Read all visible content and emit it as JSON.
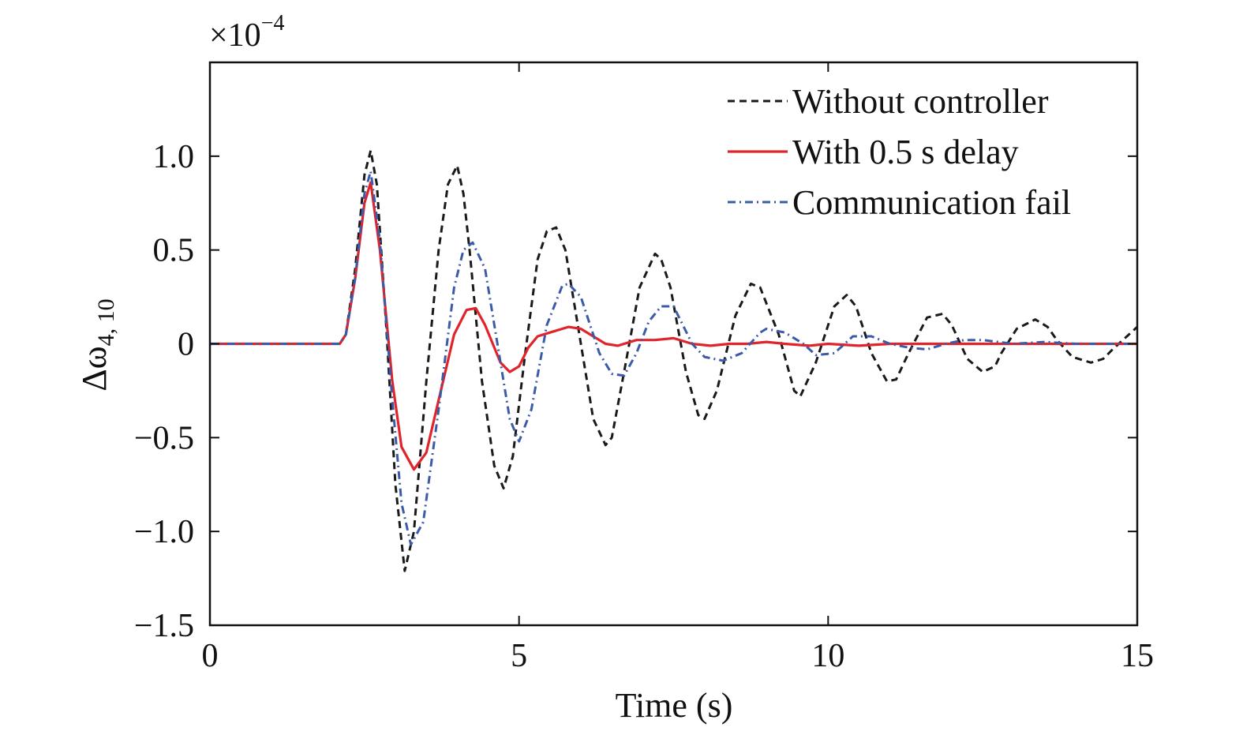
{
  "chart_data": {
    "type": "line",
    "xlabel": "Time (s)",
    "ylabel": {
      "main": "Δω",
      "subscript": "4, 10"
    },
    "y_exponent": {
      "prefix": "×10",
      "power": "−4"
    },
    "xlim": [
      0,
      15
    ],
    "ylim": [
      -1.5,
      1.5
    ],
    "x_ticks": [
      0,
      5,
      10,
      15
    ],
    "x_tick_labels": [
      "0",
      "5",
      "10",
      "15"
    ],
    "y_ticks": [
      1.0,
      0.5,
      0,
      -0.5,
      -1.0,
      -1.5
    ],
    "y_tick_labels": [
      "1.0",
      "0.5",
      "0",
      "−0.5",
      "−1.0",
      "−1.5"
    ],
    "grid": false,
    "legend_position": "top-right",
    "series": [
      {
        "name": "Without controller",
        "color": "#1a1a1a",
        "dash": "dashed",
        "x": [
          0,
          2.1,
          2.2,
          2.35,
          2.5,
          2.6,
          2.7,
          2.85,
          3.0,
          3.15,
          3.3,
          3.5,
          3.7,
          3.85,
          4.0,
          4.1,
          4.2,
          4.4,
          4.6,
          4.75,
          4.9,
          5.1,
          5.3,
          5.45,
          5.6,
          5.75,
          5.95,
          6.2,
          6.4,
          6.5,
          6.7,
          6.95,
          7.2,
          7.3,
          7.45,
          7.7,
          7.9,
          8.0,
          8.2,
          8.5,
          8.75,
          8.9,
          9.2,
          9.45,
          9.55,
          9.8,
          10.1,
          10.3,
          10.45,
          10.7,
          10.95,
          11.1,
          11.3,
          11.6,
          11.85,
          12.0,
          12.25,
          12.5,
          12.7,
          12.8,
          13.05,
          13.35,
          13.55,
          13.7,
          13.95,
          14.25,
          14.45,
          14.6,
          14.8,
          15.0
        ],
        "y": [
          0,
          0,
          0.05,
          0.4,
          0.9,
          1.03,
          0.85,
          0.1,
          -0.75,
          -1.21,
          -1.0,
          -0.2,
          0.5,
          0.85,
          0.95,
          0.8,
          0.5,
          -0.2,
          -0.65,
          -0.77,
          -0.6,
          -0.05,
          0.45,
          0.6,
          0.62,
          0.5,
          0.1,
          -0.4,
          -0.54,
          -0.5,
          -0.15,
          0.3,
          0.48,
          0.45,
          0.3,
          -0.15,
          -0.38,
          -0.4,
          -0.25,
          0.15,
          0.32,
          0.3,
          0.05,
          -0.25,
          -0.28,
          -0.1,
          0.2,
          0.26,
          0.2,
          -0.05,
          -0.2,
          -0.19,
          -0.05,
          0.14,
          0.16,
          0.1,
          -0.08,
          -0.15,
          -0.12,
          -0.05,
          0.08,
          0.13,
          0.09,
          0.02,
          -0.07,
          -0.1,
          -0.08,
          -0.03,
          0.03,
          0.09
        ]
      },
      {
        "name": "With 0.5 s delay",
        "color": "#e0242b",
        "dash": "solid",
        "x": [
          0,
          2.1,
          2.2,
          2.35,
          2.5,
          2.6,
          2.75,
          2.95,
          3.1,
          3.3,
          3.5,
          3.7,
          3.95,
          4.15,
          4.3,
          4.45,
          4.7,
          4.85,
          5.0,
          5.15,
          5.3,
          5.5,
          5.8,
          6.0,
          6.2,
          6.4,
          6.6,
          6.9,
          7.2,
          7.5,
          7.8,
          8.1,
          8.4,
          8.7,
          9.0,
          9.3,
          9.7,
          10.0,
          10.5,
          11.0,
          11.5,
          12.0,
          12.5,
          13.0,
          14.0,
          15.0
        ],
        "y": [
          0,
          0,
          0.05,
          0.35,
          0.75,
          0.86,
          0.5,
          -0.2,
          -0.55,
          -0.67,
          -0.58,
          -0.3,
          0.05,
          0.18,
          0.19,
          0.1,
          -0.1,
          -0.15,
          -0.12,
          -0.02,
          0.04,
          0.06,
          0.09,
          0.08,
          0.04,
          0.0,
          -0.01,
          0.02,
          0.02,
          0.03,
          0.0,
          -0.01,
          0.0,
          0.0,
          0.01,
          0.0,
          -0.01,
          0.0,
          -0.01,
          0.0,
          0.0,
          0.0,
          0.0,
          0.0,
          0.0,
          0.0
        ]
      },
      {
        "name": "Communication fail",
        "color": "#3b5ba9",
        "dash": "dashdot",
        "x": [
          0,
          2.1,
          2.2,
          2.35,
          2.5,
          2.6,
          2.75,
          2.95,
          3.1,
          3.25,
          3.45,
          3.7,
          3.95,
          4.1,
          4.25,
          4.45,
          4.65,
          4.85,
          5.0,
          5.2,
          5.45,
          5.7,
          5.8,
          6.0,
          6.3,
          6.5,
          6.7,
          6.9,
          7.1,
          7.3,
          7.5,
          7.8,
          8.0,
          8.3,
          8.6,
          8.9,
          9.0,
          9.3,
          9.6,
          9.8,
          10.1,
          10.4,
          10.7,
          11.0,
          11.3,
          11.6,
          11.9,
          12.2,
          12.5,
          13.0,
          13.5,
          14.0,
          15.0
        ],
        "y": [
          0,
          0,
          0.05,
          0.35,
          0.8,
          0.92,
          0.55,
          -0.3,
          -0.85,
          -1.07,
          -0.95,
          -0.35,
          0.3,
          0.5,
          0.54,
          0.4,
          0.0,
          -0.4,
          -0.52,
          -0.35,
          0.1,
          0.31,
          0.32,
          0.25,
          -0.05,
          -0.16,
          -0.17,
          -0.05,
          0.12,
          0.2,
          0.2,
          0.0,
          -0.07,
          -0.09,
          -0.05,
          0.06,
          0.08,
          0.06,
          0.0,
          -0.06,
          -0.05,
          0.04,
          0.04,
          0.0,
          -0.02,
          -0.03,
          0.0,
          0.02,
          0.02,
          0.0,
          0.01,
          0.0,
          0.0
        ]
      }
    ]
  }
}
